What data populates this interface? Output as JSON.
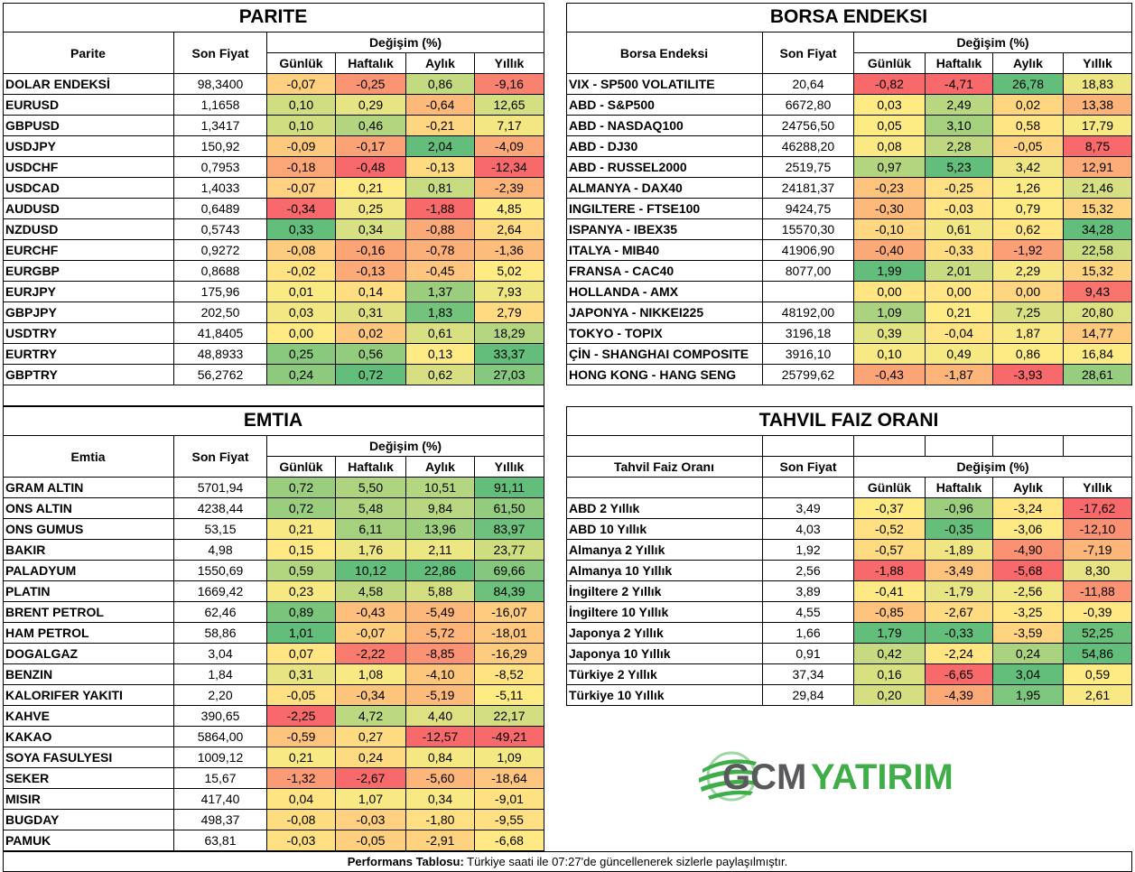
{
  "parite": {
    "title": "PARITE",
    "name_header": "Parite",
    "price_header": "Son Fiyat",
    "change_header": "Değişim (%)",
    "periods": [
      "Günlük",
      "Haftalık",
      "Aylık",
      "Yıllık"
    ],
    "rows": [
      [
        "DOLAR ENDEKSİ",
        "98,3400",
        "-0,07",
        "-0,25",
        "0,86",
        "-9,16"
      ],
      [
        "EURUSD",
        "1,1658",
        "0,10",
        "0,29",
        "-0,64",
        "12,65"
      ],
      [
        "GBPUSD",
        "1,3417",
        "0,10",
        "0,46",
        "-0,21",
        "7,17"
      ],
      [
        "USDJPY",
        "150,92",
        "-0,09",
        "-0,17",
        "2,04",
        "-4,09"
      ],
      [
        "USDCHF",
        "0,7953",
        "-0,18",
        "-0,48",
        "-0,13",
        "-12,34"
      ],
      [
        "USDCAD",
        "1,4033",
        "-0,07",
        "0,21",
        "0,81",
        "-2,39"
      ],
      [
        "AUDUSD",
        "0,6489",
        "-0,34",
        "0,25",
        "-1,88",
        "4,85"
      ],
      [
        "NZDUSD",
        "0,5743",
        "0,33",
        "0,34",
        "-0,88",
        "2,64"
      ],
      [
        "EURCHF",
        "0,9272",
        "-0,08",
        "-0,16",
        "-0,78",
        "-1,36"
      ],
      [
        "EURGBP",
        "0,8688",
        "-0,02",
        "-0,13",
        "-0,45",
        "5,02"
      ],
      [
        "EURJPY",
        "175,96",
        "0,01",
        "0,14",
        "1,37",
        "7,93"
      ],
      [
        "GBPJPY",
        "202,50",
        "0,03",
        "0,31",
        "1,83",
        "2,79"
      ],
      [
        "USDTRY",
        "41,8405",
        "0,00",
        "0,02",
        "0,61",
        "18,29"
      ],
      [
        "EURTRY",
        "48,8933",
        "0,25",
        "0,56",
        "0,13",
        "33,37"
      ],
      [
        "GBPTRY",
        "56,2762",
        "0,24",
        "0,72",
        "0,62",
        "27,03"
      ]
    ]
  },
  "borsa": {
    "title": "BORSA ENDEKSI",
    "name_header": "Borsa Endeksi",
    "price_header": "Son Fiyat",
    "change_header": "Değişim (%)",
    "periods": [
      "Günlük",
      "Haftalık",
      "Aylık",
      "Yıllık"
    ],
    "rows": [
      [
        "VIX  - SP500 VOLATILITE",
        "20,64",
        "-0,82",
        "-4,71",
        "26,78",
        "18,83"
      ],
      [
        "ABD - S&P500",
        "6672,80",
        "0,03",
        "2,49",
        "0,02",
        "13,38"
      ],
      [
        "ABD - NASDAQ100",
        "24756,50",
        "0,05",
        "3,10",
        "0,58",
        "17,79"
      ],
      [
        "ABD - DJ30",
        "46288,20",
        "0,08",
        "2,28",
        "-0,05",
        "8,75"
      ],
      [
        "ABD - RUSSEL2000",
        "2519,75",
        "0,97",
        "5,23",
        "3,42",
        "12,91"
      ],
      [
        "ALMANYA - DAX40",
        "24181,37",
        "-0,23",
        "-0,25",
        "1,26",
        "21,46"
      ],
      [
        "INGILTERE - FTSE100",
        "9424,75",
        "-0,30",
        "-0,03",
        "0,79",
        "15,32"
      ],
      [
        "ISPANYA - IBEX35",
        "15570,30",
        "-0,10",
        "0,61",
        "0,62",
        "34,28"
      ],
      [
        "ITALYA - MIB40",
        "41906,90",
        "-0,40",
        "-0,33",
        "-1,92",
        "22,58"
      ],
      [
        "FRANSA - CAC40",
        "8077,00",
        "1,99",
        "2,01",
        "2,29",
        "15,32"
      ],
      [
        "HOLLANDA - AMX",
        null,
        "0,00",
        "0,00",
        "0,00",
        "9,43"
      ],
      [
        "JAPONYA - NIKKEI225",
        "48192,00",
        "1,09",
        "0,21",
        "7,25",
        "20,80"
      ],
      [
        "TOKYO - TOPIX",
        "3196,18",
        "0,39",
        "-0,04",
        "1,87",
        "14,77"
      ],
      [
        "ÇİN - SHANGHAI COMPOSITE",
        "3916,10",
        "0,10",
        "0,49",
        "0,86",
        "16,84"
      ],
      [
        "HONG KONG - HANG SENG",
        "25799,62",
        "-0,43",
        "-1,87",
        "-3,93",
        "28,61"
      ]
    ]
  },
  "emtia": {
    "title": "EMTIA",
    "name_header": "Emtia",
    "price_header": "Son Fiyat",
    "change_header": "Değişim (%)",
    "periods": [
      "Günlük",
      "Haftalık",
      "Aylık",
      "Yıllık"
    ],
    "rows": [
      [
        "GRAM ALTIN",
        "5701,94",
        "0,72",
        "5,50",
        "10,51",
        "91,11"
      ],
      [
        "ONS ALTIN",
        "4238,44",
        "0,72",
        "5,48",
        "9,84",
        "61,50"
      ],
      [
        "ONS GUMUS",
        "53,15",
        "0,21",
        "6,11",
        "13,96",
        "83,97"
      ],
      [
        "BAKIR",
        "4,98",
        "0,15",
        "1,76",
        "2,11",
        "23,77"
      ],
      [
        "PALADYUM",
        "1550,69",
        "0,59",
        "10,12",
        "22,86",
        "69,66"
      ],
      [
        "PLATIN",
        "1669,42",
        "0,23",
        "4,58",
        "5,88",
        "84,39"
      ],
      [
        "BRENT PETROL",
        "62,46",
        "0,89",
        "-0,43",
        "-5,49",
        "-16,07"
      ],
      [
        "HAM PETROL",
        "58,86",
        "1,01",
        "-0,07",
        "-5,72",
        "-18,01"
      ],
      [
        "DOGALGAZ",
        "3,04",
        "0,07",
        "-2,22",
        "-8,85",
        "-16,29"
      ],
      [
        "BENZIN",
        "1,84",
        "0,31",
        "1,08",
        "-4,10",
        "-8,52"
      ],
      [
        "KALORIFER YAKITI",
        "2,20",
        "-0,05",
        "-0,34",
        "-5,19",
        "-5,11"
      ],
      [
        "KAHVE",
        "390,65",
        "-2,25",
        "4,72",
        "4,40",
        "22,17"
      ],
      [
        "KAKAO",
        "5864,00",
        "-0,59",
        "0,27",
        "-12,57",
        "-49,21"
      ],
      [
        "SOYA FASULYESI",
        "1009,12",
        "0,21",
        "0,24",
        "0,84",
        "1,09"
      ],
      [
        "SEKER",
        "15,67",
        "-1,32",
        "-2,67",
        "-5,60",
        "-18,64"
      ],
      [
        "MISIR",
        "417,40",
        "0,04",
        "1,07",
        "0,34",
        "-9,01"
      ],
      [
        "BUGDAY",
        "498,37",
        "-0,08",
        "-0,03",
        "-1,80",
        "-9,55"
      ],
      [
        "PAMUK",
        "63,81",
        "-0,03",
        "-0,05",
        "-2,91",
        "-6,68"
      ]
    ]
  },
  "tahvil": {
    "title": "TAHVIL FAIZ ORANI",
    "name_header": "Tahvil Faiz Oranı",
    "price_header": "Son Fiyat",
    "change_header": "Değişim (%)",
    "periods": [
      "Günlük",
      "Haftalık",
      "Aylık",
      "Yıllık"
    ],
    "rows": [
      [
        "ABD 2 Yıllık",
        "3,49",
        "-0,37",
        "-0,96",
        "-3,24",
        "-17,62"
      ],
      [
        "ABD 10 Yıllık",
        "4,03",
        "-0,52",
        "-0,35",
        "-3,06",
        "-12,10"
      ],
      [
        "Almanya 2 Yıllık",
        "1,92",
        "-0,57",
        "-1,89",
        "-4,90",
        "-7,19"
      ],
      [
        "Almanya 10 Yıllık",
        "2,56",
        "-1,88",
        "-3,49",
        "-5,68",
        "8,30"
      ],
      [
        "İngiltere 2 Yıllık",
        "3,89",
        "-0,41",
        "-1,79",
        "-2,56",
        "-11,88"
      ],
      [
        "İngiltere 10 Yıllık",
        "4,55",
        "-0,85",
        "-2,67",
        "-3,25",
        "-0,39"
      ],
      [
        "Japonya 2 Yıllık",
        "1,66",
        "1,79",
        "-0,33",
        "-3,59",
        "52,25"
      ],
      [
        "Japonya 10 Yıllık",
        "0,91",
        "0,42",
        "-2,24",
        "0,24",
        "54,86"
      ],
      [
        "Türkiye 2 Yıllık",
        "37,34",
        "0,16",
        "-6,65",
        "3,04",
        "0,59"
      ],
      [
        "Türkiye 10 Yıllık",
        "29,84",
        "0,20",
        "-4,39",
        "1,95",
        "2,61"
      ]
    ]
  },
  "logo": {
    "brand": "GCM",
    "suffix": "YATIRIM"
  },
  "footer": {
    "label": "Performans Tablosu:",
    "text": " Türkiye saati ile 07:27'de güncellenerek sizlerle paylaşılmıştır."
  }
}
